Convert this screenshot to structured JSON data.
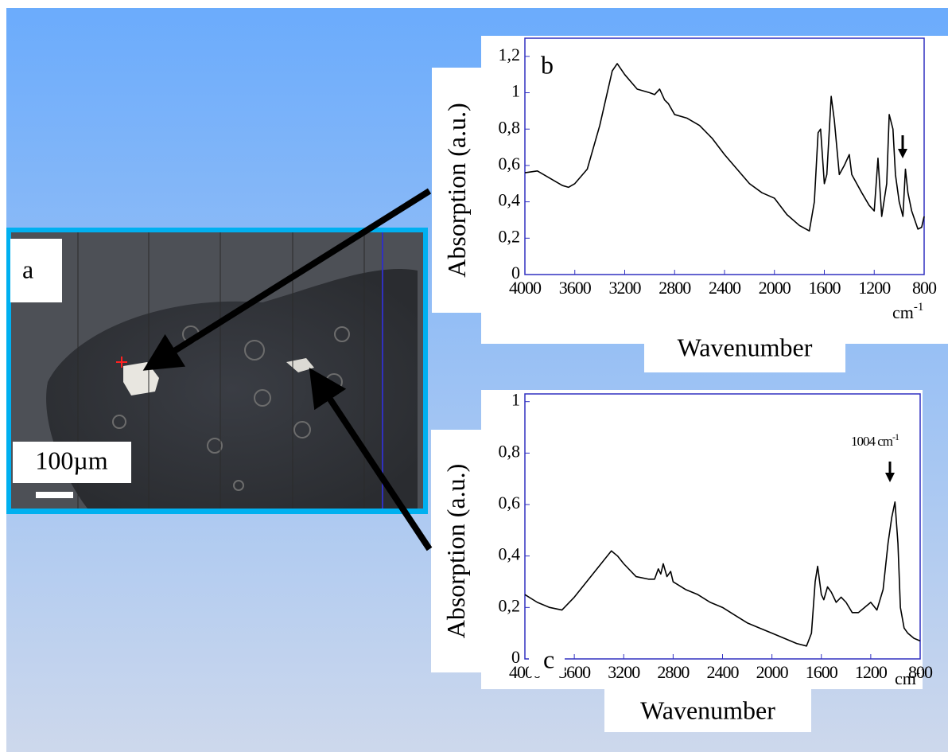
{
  "panel_a": {
    "label": "a",
    "scale_bar": "100µm"
  },
  "chart_data": [
    {
      "type": "line",
      "panel_label": "b",
      "y_label": "Absorption (a.u.)",
      "x_label": "Wavenumber",
      "x_unit": "cm",
      "x_unit_exp": "-1",
      "xlim": [
        4000,
        800
      ],
      "xticks": [
        4000,
        3600,
        3200,
        2800,
        2400,
        2000,
        1600,
        1200,
        800
      ],
      "ylim": [
        0,
        1.3
      ],
      "yticks": [
        0,
        {
          "value": 0.2,
          "label": "0,2"
        },
        {
          "value": 0.4,
          "label": "0,4"
        },
        {
          "value": 0.6,
          "label": "0,6"
        },
        {
          "value": 0.8,
          "label": "0,8"
        },
        1,
        {
          "value": 1.2,
          "label": "1,2"
        }
      ],
      "x": [
        4000,
        3900,
        3800,
        3700,
        3650,
        3600,
        3500,
        3400,
        3300,
        3260,
        3200,
        3100,
        3000,
        2960,
        2920,
        2880,
        2850,
        2800,
        2700,
        2600,
        2500,
        2400,
        2300,
        2200,
        2100,
        2000,
        1900,
        1800,
        1720,
        1680,
        1650,
        1630,
        1600,
        1580,
        1545,
        1520,
        1480,
        1440,
        1400,
        1380,
        1300,
        1240,
        1200,
        1170,
        1140,
        1100,
        1080,
        1050,
        1030,
        1000,
        970,
        950,
        930,
        900,
        850,
        820,
        800
      ],
      "series": [
        {
          "color": "#000000",
          "values": [
            0.56,
            0.57,
            0.53,
            0.49,
            0.48,
            0.5,
            0.58,
            0.82,
            1.12,
            1.16,
            1.1,
            1.02,
            1.0,
            0.99,
            1.02,
            0.96,
            0.94,
            0.88,
            0.86,
            0.82,
            0.75,
            0.66,
            0.58,
            0.5,
            0.45,
            0.42,
            0.33,
            0.27,
            0.24,
            0.4,
            0.78,
            0.8,
            0.5,
            0.55,
            0.98,
            0.85,
            0.55,
            0.6,
            0.66,
            0.55,
            0.45,
            0.38,
            0.35,
            0.64,
            0.32,
            0.5,
            0.88,
            0.8,
            0.55,
            0.4,
            0.32,
            0.58,
            0.45,
            0.35,
            0.25,
            0.26,
            0.32
          ]
        }
      ]
    },
    {
      "type": "line",
      "panel_label": "c",
      "y_label": "Absorption (a.u.)",
      "x_label": "Wavenumber",
      "x_unit": "cm",
      "x_unit_exp": "-1",
      "annotation": "1004 cm",
      "annotation_exp": "-1",
      "xlim": [
        4000,
        800
      ],
      "xticks": [
        4000,
        3600,
        3200,
        2800,
        2400,
        2000,
        1600,
        1200,
        800
      ],
      "ylim": [
        0,
        1.03
      ],
      "yticks": [
        0,
        {
          "value": 0.2,
          "label": "0,2"
        },
        {
          "value": 0.4,
          "label": "0,4"
        },
        {
          "value": 0.6,
          "label": "0,6"
        },
        {
          "value": 0.8,
          "label": "0,8"
        },
        1
      ],
      "x": [
        4000,
        3900,
        3800,
        3700,
        3600,
        3500,
        3400,
        3300,
        3250,
        3200,
        3100,
        3000,
        2950,
        2920,
        2900,
        2880,
        2850,
        2820,
        2800,
        2700,
        2600,
        2500,
        2400,
        2300,
        2200,
        2100,
        2000,
        1900,
        1800,
        1720,
        1680,
        1650,
        1630,
        1600,
        1580,
        1550,
        1520,
        1480,
        1440,
        1400,
        1350,
        1300,
        1250,
        1200,
        1150,
        1100,
        1060,
        1030,
        1004,
        980,
        960,
        930,
        900,
        850,
        800
      ],
      "series": [
        {
          "color": "#000000",
          "values": [
            0.25,
            0.22,
            0.2,
            0.19,
            0.24,
            0.3,
            0.36,
            0.42,
            0.4,
            0.37,
            0.32,
            0.31,
            0.31,
            0.35,
            0.33,
            0.37,
            0.32,
            0.34,
            0.3,
            0.27,
            0.25,
            0.22,
            0.2,
            0.17,
            0.14,
            0.12,
            0.1,
            0.08,
            0.06,
            0.05,
            0.1,
            0.3,
            0.36,
            0.25,
            0.23,
            0.28,
            0.26,
            0.22,
            0.24,
            0.22,
            0.18,
            0.18,
            0.2,
            0.22,
            0.19,
            0.27,
            0.45,
            0.55,
            0.61,
            0.45,
            0.2,
            0.12,
            0.1,
            0.08,
            0.07
          ]
        }
      ]
    }
  ]
}
